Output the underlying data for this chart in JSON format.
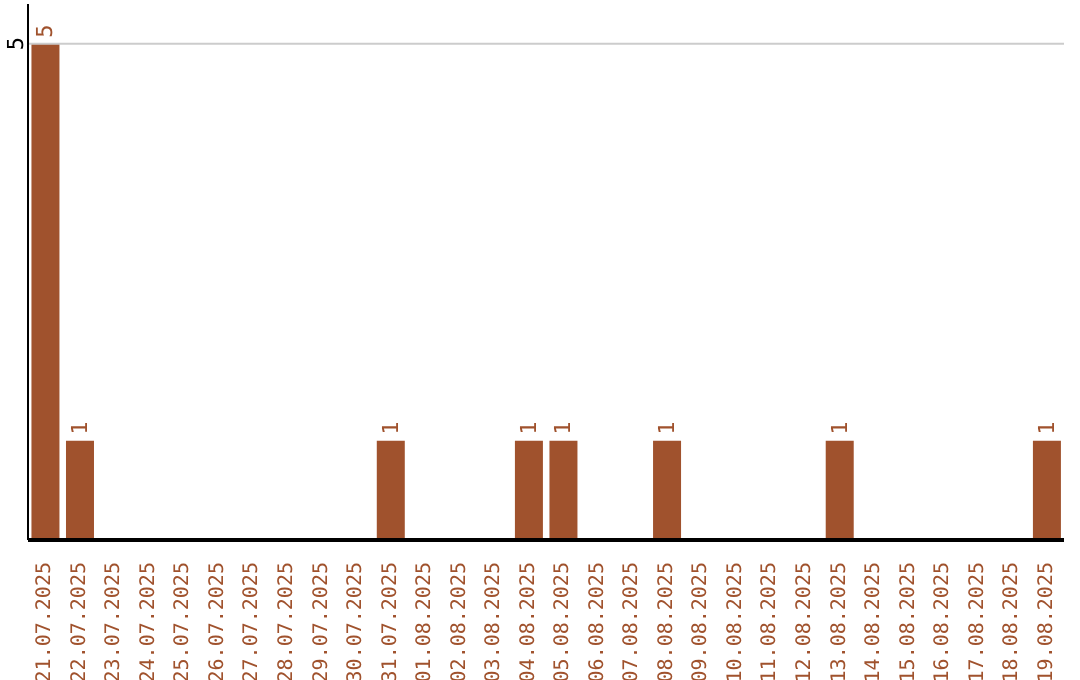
{
  "chart_data": {
    "type": "bar",
    "categories": [
      "21.07.2025",
      "22.07.2025",
      "23.07.2025",
      "24.07.2025",
      "25.07.2025",
      "26.07.2025",
      "27.07.2025",
      "28.07.2025",
      "29.07.2025",
      "30.07.2025",
      "31.07.2025",
      "01.08.2025",
      "02.08.2025",
      "03.08.2025",
      "04.08.2025",
      "05.08.2025",
      "06.08.2025",
      "07.08.2025",
      "08.08.2025",
      "09.08.2025",
      "10.08.2025",
      "11.08.2025",
      "12.08.2025",
      "13.08.2025",
      "14.08.2025",
      "15.08.2025",
      "16.08.2025",
      "17.08.2025",
      "18.08.2025",
      "19.08.2025"
    ],
    "values": [
      5,
      1,
      0,
      0,
      0,
      0,
      0,
      0,
      0,
      0,
      1,
      0,
      0,
      0,
      1,
      1,
      0,
      0,
      1,
      0,
      0,
      0,
      0,
      1,
      0,
      0,
      0,
      0,
      0,
      1
    ],
    "color": "#a0522d",
    "value_labels": [
      "5",
      "1",
      null,
      null,
      null,
      null,
      null,
      null,
      null,
      null,
      "1",
      null,
      null,
      null,
      "1",
      "1",
      null,
      null,
      "1",
      null,
      null,
      null,
      null,
      "1",
      null,
      null,
      null,
      null,
      null,
      "1"
    ],
    "ylim": [
      0,
      5.4
    ],
    "yticks": [
      5
    ],
    "grid": "y"
  }
}
